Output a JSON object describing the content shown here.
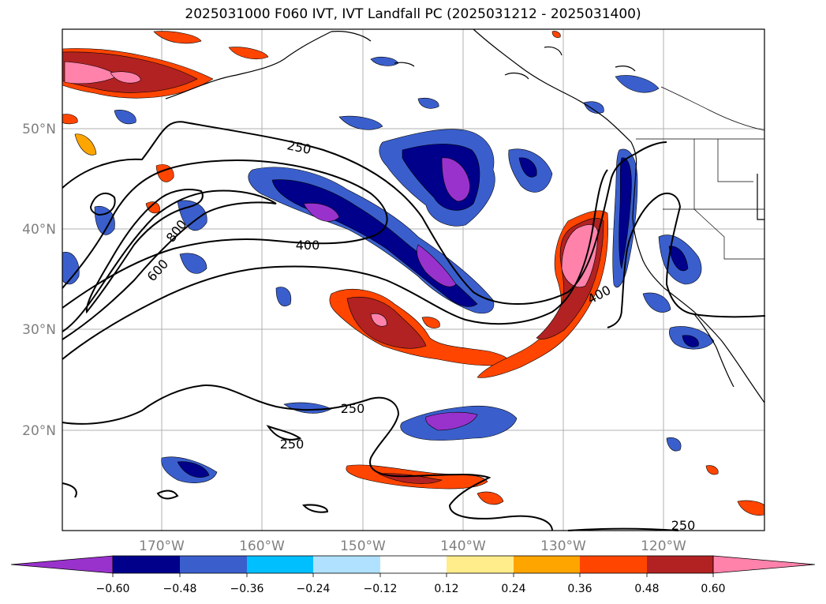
{
  "title": "2025031000 F060 IVT, IVT Landfall PC (2025031212 - 2025031400)",
  "lon_labels": [
    "170°W",
    "160°W",
    "150°W",
    "140°W",
    "130°W",
    "120°W"
  ],
  "lat_labels": [
    "50°N",
    "40°N",
    "30°N",
    "20°N"
  ],
  "contour_labels": [
    "250",
    "800",
    "600",
    "400",
    "400",
    "250",
    "250",
    "250"
  ],
  "colorbar": {
    "ticks": [
      "−0.60",
      "−0.48",
      "−0.36",
      "−0.24",
      "−0.12",
      "0.12",
      "0.24",
      "0.36",
      "0.48",
      "0.60"
    ],
    "colors": [
      "#9932cc",
      "#00008b",
      "#3a5fcd",
      "#00bfff",
      "#b0e2ff",
      "#ffffff",
      "#ffec8b",
      "#ffa500",
      "#ff4500",
      "#b22222",
      "#ff82ab",
      "#ff82ab"
    ]
  },
  "colors": {
    "neg_strong": "#9932cc",
    "neg_dark": "#00008b",
    "neg_mid": "#3a5fcd",
    "neg_light": "#00bfff",
    "neg_pale": "#b0e2ff",
    "pos_pale": "#ffec8b",
    "pos_light": "#ffa500",
    "pos_mid": "#ff4500",
    "pos_dark": "#b22222",
    "pos_strong": "#ff82ab"
  }
}
